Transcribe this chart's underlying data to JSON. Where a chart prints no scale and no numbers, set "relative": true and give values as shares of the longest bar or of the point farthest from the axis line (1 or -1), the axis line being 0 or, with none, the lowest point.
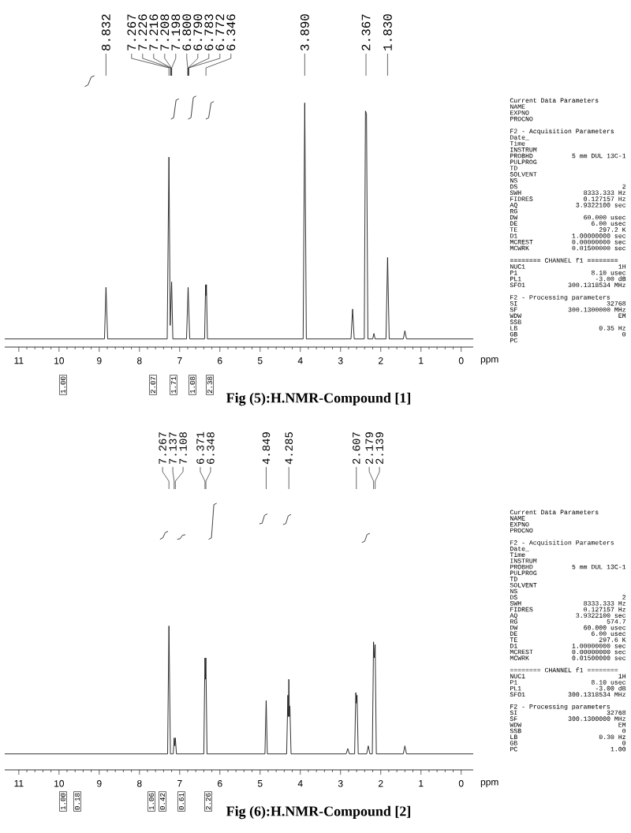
{
  "chart_data": [
    {
      "type": "line",
      "relative": true,
      "title": "Fig (5):H.NMR-Compound [1]",
      "xlabel": "ppm",
      "xlim": [
        11.35,
        -0.3
      ],
      "xticks": [
        11,
        10,
        9,
        8,
        7,
        6,
        5,
        4,
        3,
        2,
        1,
        0
      ],
      "series": [
        {
          "color": "#1a1a1a",
          "x": [
            11.35,
            8.87,
            8.832,
            8.79,
            7.31,
            7.267,
            7.235,
            7.2,
            7.17,
            6.83,
            6.79,
            6.75,
            6.38,
            6.355,
            6.345,
            6.335,
            6.31,
            3.93,
            3.89,
            3.85,
            2.74,
            2.7,
            2.66,
            2.41,
            2.38,
            2.355,
            2.32,
            2.2,
            2.17,
            2.14,
            1.87,
            1.83,
            1.79,
            1.44,
            1.4,
            1.36,
            -0.3
          ],
          "values": [
            0.03,
            0.03,
            0.22,
            0.03,
            0.03,
            0.7,
            0.08,
            0.24,
            0.03,
            0.03,
            0.22,
            0.03,
            0.03,
            0.23,
            0.19,
            0.23,
            0.03,
            0.03,
            0.9,
            0.03,
            0.03,
            0.14,
            0.03,
            0.03,
            0.87,
            0.86,
            0.03,
            0.03,
            0.05,
            0.03,
            0.03,
            0.33,
            0.03,
            0.03,
            0.06,
            0.03,
            0.03
          ]
        },
        {
          "color": "#2a2a2a",
          "x": [
            9.36,
            9.28,
            9.2,
            9.12
          ],
          "values": [
            0.96,
            0.966,
            0.995,
            1
          ]
        },
        {
          "color": "#2c2c2c",
          "x": [
            7.22,
            7.15,
            7.09,
            7.02
          ],
          "values": [
            0.84,
            0.845,
            0.91,
            0.915
          ]
        },
        {
          "color": "#2e2e2e",
          "x": [
            6.79,
            6.72,
            6.66,
            6.59
          ],
          "values": [
            0.84,
            0.845,
            0.92,
            0.925
          ]
        },
        {
          "color": "#303030",
          "x": [
            6.35,
            6.28,
            6.22,
            6.15
          ],
          "values": [
            0.84,
            0.845,
            0.9,
            0.905
          ]
        }
      ],
      "annotations": [
        {
          "text": "8.832",
          "x": 8.832
        },
        {
          "text": "7.267",
          "x": 7.267
        },
        {
          "text": "7.226",
          "x": 7.226
        },
        {
          "text": "7.216",
          "x": 7.216
        },
        {
          "text": "7.208",
          "x": 7.208
        },
        {
          "text": "7.198",
          "x": 7.198
        },
        {
          "text": "6.800",
          "x": 6.8
        },
        {
          "text": "6.790",
          "x": 6.79
        },
        {
          "text": "6.783",
          "x": 6.783
        },
        {
          "text": "6.772",
          "x": 6.772
        },
        {
          "text": "6.346",
          "x": 6.346
        },
        {
          "text": "3.890",
          "x": 3.89
        },
        {
          "text": "2.367",
          "x": 2.367
        },
        {
          "text": "1.830",
          "x": 1.83
        },
        "1.00",
        "2.07",
        "1.71",
        "1.08",
        "2.38",
        "Current Data Parameters",
        "NAME",
        "EXPNO",
        "PROCNO",
        "F2 - Acquisition Parameters",
        "Date_",
        "Time",
        "INSTRUM",
        "PROBHD",
        "5 mm DUL 13C-1",
        "PULPROG",
        "TD",
        "SOLVENT",
        "NS",
        "DS",
        "2",
        "SWH",
        "8333.333 Hz",
        "FIDRES",
        "0.127157 Hz",
        "AQ",
        "3.9322100 sec",
        "RG",
        "DW",
        "60.000 usec",
        "DE",
        "6.00 usec",
        "TE",
        "297.2 K",
        "D1",
        "1.00000000 sec",
        "MCREST",
        "0.00000000 sec",
        "MCWRK",
        "0.01500000 sec",
        "======== CHANNEL f1 ========",
        "NUC1",
        "1H",
        "P1",
        "8.10 usec",
        "PL1",
        "-3.00 dB",
        "SFO1",
        "300.1318534 MHz",
        "F2 - Processing parameters",
        "SI",
        "32768",
        "SF",
        "300.1300000 MHz",
        "WDW",
        "EM",
        "SSB",
        "LB",
        "0.35 Hz",
        "GB",
        "0",
        "PC"
      ]
    },
    {
      "type": "line",
      "relative": true,
      "title": "Fig (6):H.NMR-Compound [2]",
      "xlabel": "ppm",
      "xlim": [
        11.35,
        -0.3
      ],
      "xticks": [
        11,
        10,
        9,
        8,
        7,
        6,
        5,
        4,
        3,
        2,
        1,
        0
      ],
      "series": [
        {
          "color": "#1a1a1a",
          "x": [
            11.35,
            7.3,
            7.267,
            7.23,
            7.16,
            7.137,
            7.12,
            7.108,
            7.08,
            6.4,
            6.371,
            6.36,
            6.348,
            6.32,
            4.88,
            4.849,
            4.82,
            4.34,
            4.31,
            4.297,
            4.285,
            4.272,
            4.26,
            4.23,
            2.86,
            2.82,
            2.78,
            2.65,
            2.62,
            2.607,
            2.59,
            2.56,
            2.35,
            2.31,
            2.27,
            2.21,
            2.179,
            2.16,
            2.139,
            2.11,
            1.44,
            1.4,
            1.36,
            -0.3
          ],
          "values": [
            0.06,
            0.06,
            0.54,
            0.06,
            0.06,
            0.12,
            0.09,
            0.12,
            0.06,
            0.06,
            0.42,
            0.34,
            0.42,
            0.06,
            0.06,
            0.26,
            0.06,
            0.06,
            0.28,
            0.2,
            0.34,
            0.2,
            0.24,
            0.06,
            0.06,
            0.08,
            0.06,
            0.06,
            0.29,
            0.25,
            0.28,
            0.06,
            0.06,
            0.09,
            0.06,
            0.06,
            0.48,
            0.42,
            0.47,
            0.06,
            0.06,
            0.09,
            0.06,
            0.06
          ]
        },
        {
          "color": "#2a2a2a",
          "x": [
            7.49,
            7.42,
            7.36,
            7.29
          ],
          "values": [
            0.865,
            0.87,
            0.89,
            0.895
          ]
        },
        {
          "color": "#2c2c2c",
          "x": [
            7.06,
            6.99,
            6.93,
            6.86
          ],
          "values": [
            0.865,
            0.867,
            0.88,
            0.882
          ]
        },
        {
          "color": "#2e2e2e",
          "x": [
            6.28,
            6.21,
            6.15,
            6.08
          ],
          "values": [
            0.865,
            0.87,
            0.995,
            1
          ]
        },
        {
          "color": "#303030",
          "x": [
            5.02,
            4.95,
            4.89,
            4.82
          ],
          "values": [
            0.923,
            0.925,
            0.955,
            0.96
          ]
        },
        {
          "color": "#323232",
          "x": [
            4.43,
            4.36,
            4.3,
            4.23
          ],
          "values": [
            0.92,
            0.924,
            0.953,
            0.958
          ]
        },
        {
          "color": "#343434",
          "x": [
            2.47,
            2.4,
            2.34,
            2.27
          ],
          "values": [
            0.853,
            0.857,
            0.883,
            0.887
          ]
        }
      ],
      "annotations": [
        {
          "text": "7.267",
          "x": 7.267
        },
        {
          "text": "7.137",
          "x": 7.137
        },
        {
          "text": "7.108",
          "x": 7.108
        },
        {
          "text": "6.371",
          "x": 6.371
        },
        {
          "text": "6.348",
          "x": 6.348
        },
        {
          "text": "4.849",
          "x": 4.849
        },
        {
          "text": "4.285",
          "x": 4.285
        },
        {
          "text": "2.607",
          "x": 2.607
        },
        {
          "text": "2.179",
          "x": 2.179
        },
        {
          "text": "2.139",
          "x": 2.139
        },
        "1.00",
        "0.18",
        "1.06",
        "0.42",
        "0.61",
        "2.26",
        "Current Data Parameters",
        "NAME",
        "EXPNO",
        "PROCNO",
        "F2 - Acquisition Parameters",
        "Date_",
        "Time",
        "INSTRUM",
        "PROBHD",
        "5 mm DUL 13C-1",
        "PULPROG",
        "TD",
        "SOLVENT",
        "NS",
        "DS",
        "2",
        "SWH",
        "8333.333 Hz",
        "FIDRES",
        "0.127157 Hz",
        "AQ",
        "3.9322100 sec",
        "RG",
        "574.7",
        "DW",
        "60.000 usec",
        "DE",
        "6.00 usec",
        "TE",
        "297.6 K",
        "D1",
        "1.00000000 sec",
        "MCREST",
        "0.00000000 sec",
        "MCWRK",
        "0.01500000 sec",
        "======== CHANNEL f1 ========",
        "NUC1",
        "1H",
        "P1",
        "8.10 usec",
        "PL1",
        "-3.00 dB",
        "SFO1",
        "300.1318534 MHz",
        "F2 - Processing parameters",
        "SI",
        "32768",
        "SF",
        "300.1300000 MHz",
        "WDW",
        "EM",
        "SSB",
        "0",
        "LB",
        "0.30 Hz",
        "GB",
        "0",
        "PC",
        "1.00"
      ]
    }
  ]
}
